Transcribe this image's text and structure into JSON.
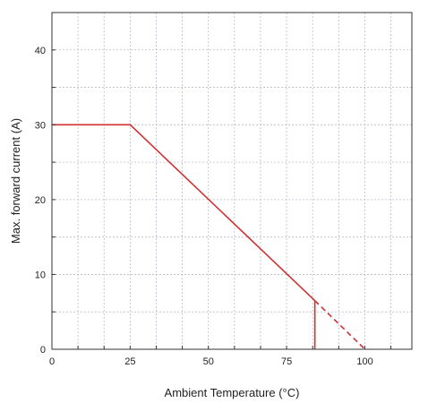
{
  "chart_data": {
    "type": "line",
    "title": "",
    "xlabel": "Ambient Temperature (°C)",
    "ylabel": "Max. forward current (A)",
    "xlim": [
      0,
      115
    ],
    "ylim": [
      0,
      45
    ],
    "x_ticks": [
      0,
      25,
      50,
      75,
      100
    ],
    "y_ticks": [
      0,
      10,
      20,
      30,
      40
    ],
    "x_minor_step": 8.33,
    "y_minor_step": 5,
    "grid": true,
    "colors": {
      "series": "#d03030",
      "grid": "#b8bcc8",
      "axis": "#333333"
    },
    "series": [
      {
        "style": "solid",
        "x": [
          0,
          25,
          84
        ],
        "y": [
          30,
          30,
          6.5
        ]
      },
      {
        "style": "dashed",
        "x": [
          84,
          100
        ],
        "y": [
          6.5,
          0
        ]
      },
      {
        "style": "solid",
        "x": [
          84,
          84
        ],
        "y": [
          6.5,
          0
        ]
      }
    ],
    "x_tick_labels": [
      "0",
      "25",
      "50",
      "75",
      "100"
    ],
    "y_tick_labels": [
      "0",
      "10",
      "20",
      "30",
      "40"
    ]
  }
}
